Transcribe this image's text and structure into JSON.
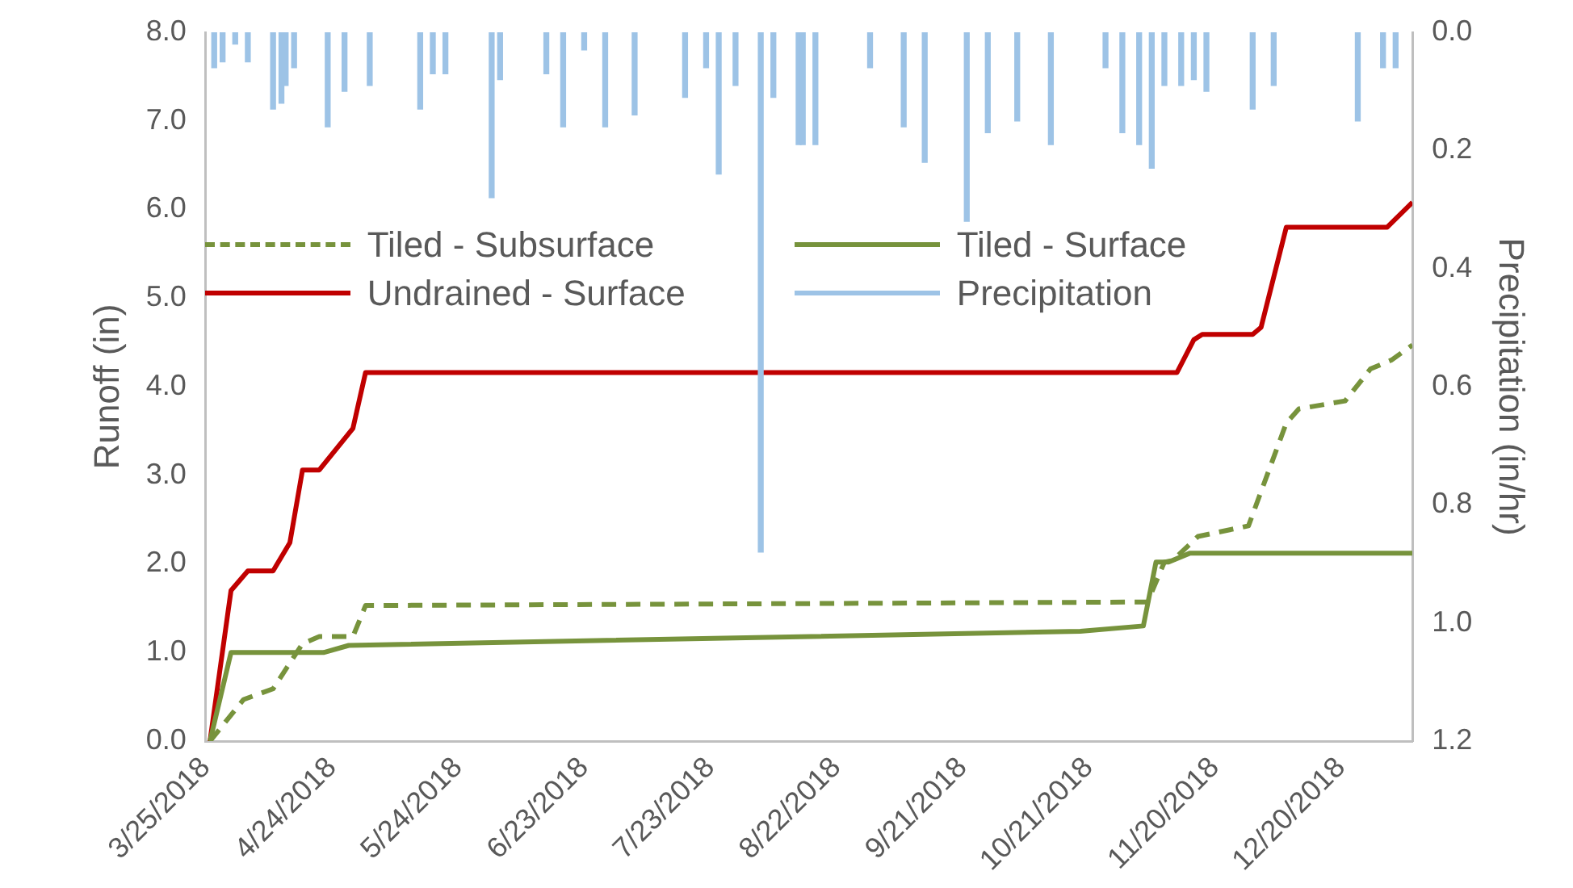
{
  "chart_data": {
    "type": "line",
    "ylabel": "Runoff (in)",
    "y2label": "Precipitation (in/hr)",
    "xlim": [
      "2018-03-25",
      "2019-01-06"
    ],
    "xticks": [
      {
        "value": "2018-03-25",
        "label": "3/25/2018"
      },
      {
        "value": "2018-04-24",
        "label": "4/24/2018"
      },
      {
        "value": "2018-05-24",
        "label": "5/24/2018"
      },
      {
        "value": "2018-06-23",
        "label": "6/23/2018"
      },
      {
        "value": "2018-07-23",
        "label": "7/23/2018"
      },
      {
        "value": "2018-08-22",
        "label": "8/22/2018"
      },
      {
        "value": "2018-09-21",
        "label": "9/21/2018"
      },
      {
        "value": "2018-10-21",
        "label": "10/21/2018"
      },
      {
        "value": "2018-11-20",
        "label": "11/20/2018"
      },
      {
        "value": "2018-12-20",
        "label": "12/20/2018"
      }
    ],
    "ylim": [
      0,
      8
    ],
    "yticks": [
      {
        "value": 0,
        "label": "0.0"
      },
      {
        "value": 1,
        "label": "1.0"
      },
      {
        "value": 2,
        "label": "2.0"
      },
      {
        "value": 3,
        "label": "3.0"
      },
      {
        "value": 4,
        "label": "4.0"
      },
      {
        "value": 5,
        "label": "5.0"
      },
      {
        "value": 6,
        "label": "6.0"
      },
      {
        "value": 7,
        "label": "7.0"
      },
      {
        "value": 8,
        "label": "8.0"
      }
    ],
    "y2lim": [
      1.2,
      0
    ],
    "y2ticks": [
      {
        "value": 0,
        "label": "0.0"
      },
      0.2,
      0.4,
      0.6,
      0.8,
      {
        "value": 1,
        "label": "1.0"
      },
      1.2
    ],
    "legend": "top left",
    "marker": "none",
    "series": [
      {
        "name": "Tiled - Subsurface",
        "line_style": "dashed",
        "color": "#77933c",
        "x": [
          "2018-03-26",
          "2018-04-03",
          "2018-04-10",
          "2018-04-17",
          "2018-04-21",
          "2018-04-29",
          "2018-05-02",
          "2018-11-04",
          "2018-11-08",
          "2018-11-10",
          "2018-11-16",
          "2018-11-28",
          "2018-12-07",
          "2018-12-10",
          "2018-12-21",
          "2018-12-27",
          "2019-01-01",
          "2019-01-06"
        ],
        "values": [
          0,
          0.47,
          0.59,
          1.1,
          1.18,
          1.18,
          1.53,
          1.57,
          2.02,
          2.04,
          2.31,
          2.43,
          3.59,
          3.75,
          3.84,
          4.2,
          4.3,
          4.47
        ]
      },
      {
        "name": "Tiled - Surface",
        "line_style": "solid",
        "color": "#77933c",
        "x": [
          "2018-03-26",
          "2018-03-31",
          "2018-04-22",
          "2018-04-28",
          "2018-10-19",
          "2018-11-03",
          "2018-11-06",
          "2018-11-09",
          "2018-11-14",
          "2019-01-06"
        ],
        "values": [
          0,
          1.0,
          1.0,
          1.08,
          1.24,
          1.3,
          2.02,
          2.02,
          2.12,
          2.12
        ]
      },
      {
        "name": "Undrained - Surface",
        "line_style": "solid",
        "color": "#c00000",
        "x": [
          "2018-03-26",
          "2018-03-31",
          "2018-04-04",
          "2018-04-10",
          "2018-04-14",
          "2018-04-17",
          "2018-04-21",
          "2018-04-29",
          "2018-05-02",
          "2018-11-11",
          "2018-11-15",
          "2018-11-17",
          "2018-11-29",
          "2018-12-01",
          "2018-12-07",
          "2018-12-31",
          "2019-01-06"
        ],
        "values": [
          0,
          1.7,
          1.92,
          1.92,
          2.24,
          3.06,
          3.06,
          3.53,
          4.16,
          4.16,
          4.53,
          4.59,
          4.59,
          4.67,
          5.8,
          5.8,
          6.08
        ]
      },
      {
        "name": "Precipitation",
        "type": "bar",
        "axis": "y2",
        "color": "#9dc3e6",
        "x": [
          "2018-03-27",
          "2018-03-29",
          "2018-04-01",
          "2018-04-04",
          "2018-04-10",
          "2018-04-12",
          "2018-04-13",
          "2018-04-15",
          "2018-04-23",
          "2018-04-27",
          "2018-05-03",
          "2018-05-15",
          "2018-05-18",
          "2018-05-21",
          "2018-06-01",
          "2018-06-03",
          "2018-06-14",
          "2018-06-18",
          "2018-06-23",
          "2018-06-28",
          "2018-07-05",
          "2018-07-17",
          "2018-07-22",
          "2018-07-25",
          "2018-07-29",
          "2018-08-04",
          "2018-08-07",
          "2018-08-13",
          "2018-08-14",
          "2018-08-17",
          "2018-08-30",
          "2018-09-07",
          "2018-09-12",
          "2018-09-22",
          "2018-09-27",
          "2018-10-04",
          "2018-10-12",
          "2018-10-25",
          "2018-10-29",
          "2018-11-02",
          "2018-11-05",
          "2018-11-08",
          "2018-11-12",
          "2018-11-15",
          "2018-11-18",
          "2018-11-29",
          "2018-12-04",
          "2018-12-24",
          "2018-12-30",
          "2019-01-02"
        ],
        "values": [
          0.06,
          0.05,
          0.02,
          0.05,
          0.13,
          0.12,
          0.09,
          0.06,
          0.16,
          0.1,
          0.09,
          0.13,
          0.07,
          0.07,
          0.28,
          0.08,
          0.07,
          0.16,
          0.03,
          0.16,
          0.14,
          0.11,
          0.06,
          0.24,
          0.09,
          0.88,
          0.11,
          0.19,
          0.19,
          0.19,
          0.06,
          0.16,
          0.22,
          0.32,
          0.17,
          0.15,
          0.19,
          0.06,
          0.17,
          0.19,
          0.23,
          0.09,
          0.09,
          0.08,
          0.1,
          0.13,
          0.09,
          0.15,
          0.06,
          0.06
        ]
      }
    ]
  }
}
